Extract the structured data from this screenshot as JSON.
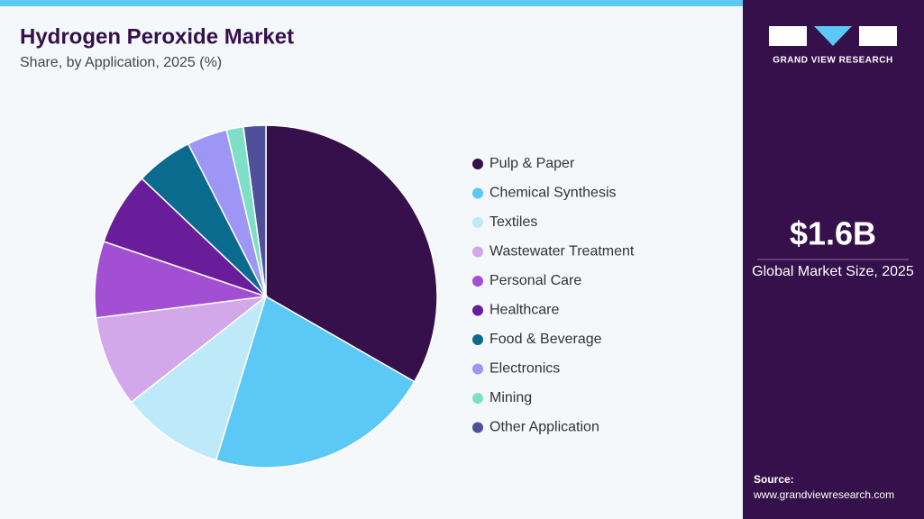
{
  "chart_data": {
    "type": "pie",
    "title": "Hydrogen Peroxide Market",
    "subtitle": "Share, by Application, 2025 (%)",
    "categories": [
      "Pulp & Paper",
      "Chemical Synthesis",
      "Textiles",
      "Wastewater Treatment",
      "Personal Care",
      "Healthcare",
      "Food & Beverage",
      "Electronics",
      "Mining",
      "Other Application"
    ],
    "values": [
      33.3,
      21.4,
      9.7,
      8.6,
      7.2,
      6.9,
      5.4,
      3.8,
      1.6,
      2.1
    ],
    "colors": [
      "#35104a",
      "#5bc8f5",
      "#bde9f9",
      "#d3a8ea",
      "#a34fd3",
      "#6a1d9a",
      "#0b6b8f",
      "#9d96f5",
      "#7ddfc8",
      "#4f4f9a"
    ],
    "legend": "right"
  },
  "sidebar": {
    "logo_text": "GRAND VIEW RESEARCH",
    "market_size": "$1.6B",
    "market_size_label": "Global Market Size, 2025",
    "source_label": "Source:",
    "source_url": "www.grandviewresearch.com"
  }
}
